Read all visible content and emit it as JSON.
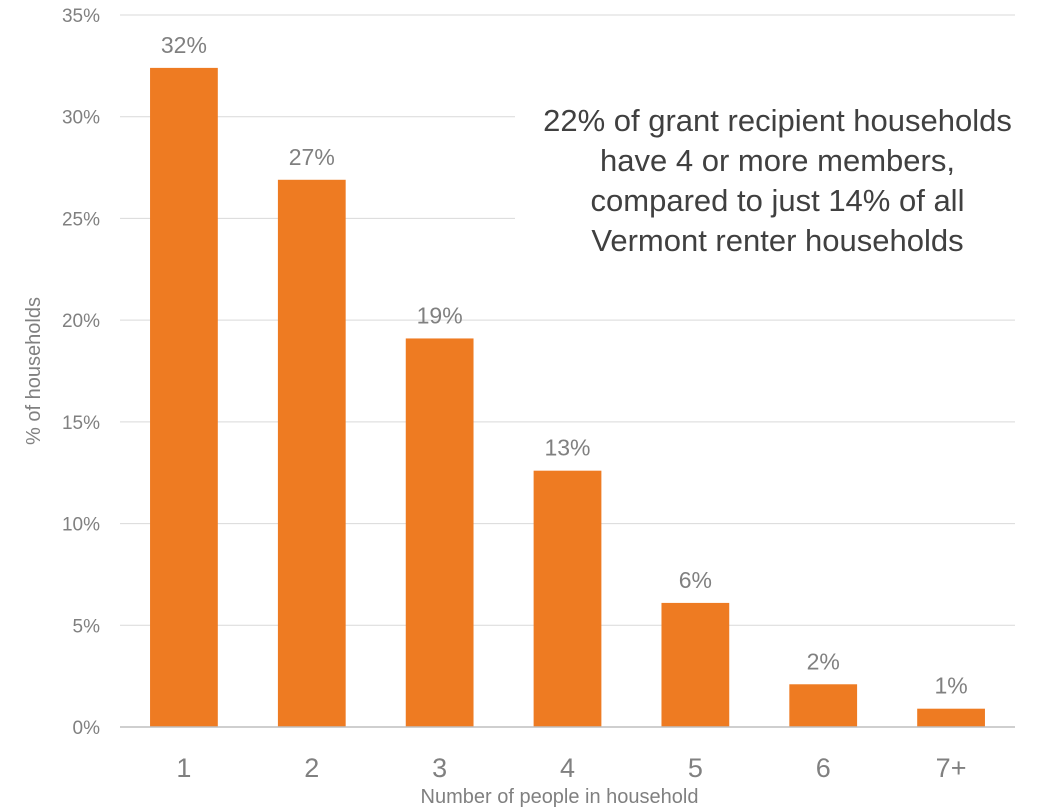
{
  "chart_data": {
    "type": "bar",
    "categories": [
      "1",
      "2",
      "3",
      "4",
      "5",
      "6",
      "7+"
    ],
    "values": [
      32.4,
      26.9,
      19.1,
      12.6,
      6.1,
      2.1,
      0.9
    ],
    "data_labels": [
      "32%",
      "27%",
      "19%",
      "13%",
      "6%",
      "2%",
      "1%"
    ],
    "xlabel": "Number of people in household",
    "ylabel": "% of households",
    "ylim": [
      0,
      35
    ],
    "yticks": [
      0,
      5,
      10,
      15,
      20,
      25,
      30,
      35
    ],
    "ytick_labels": [
      "0%",
      "5%",
      "10%",
      "15%",
      "20%",
      "25%",
      "30%",
      "35%"
    ],
    "grid": true,
    "bar_color": "#EE7B22",
    "annotation": "22% of grant recipient households have 4 or more members, compared to just 14% of all Vermont renter households"
  }
}
